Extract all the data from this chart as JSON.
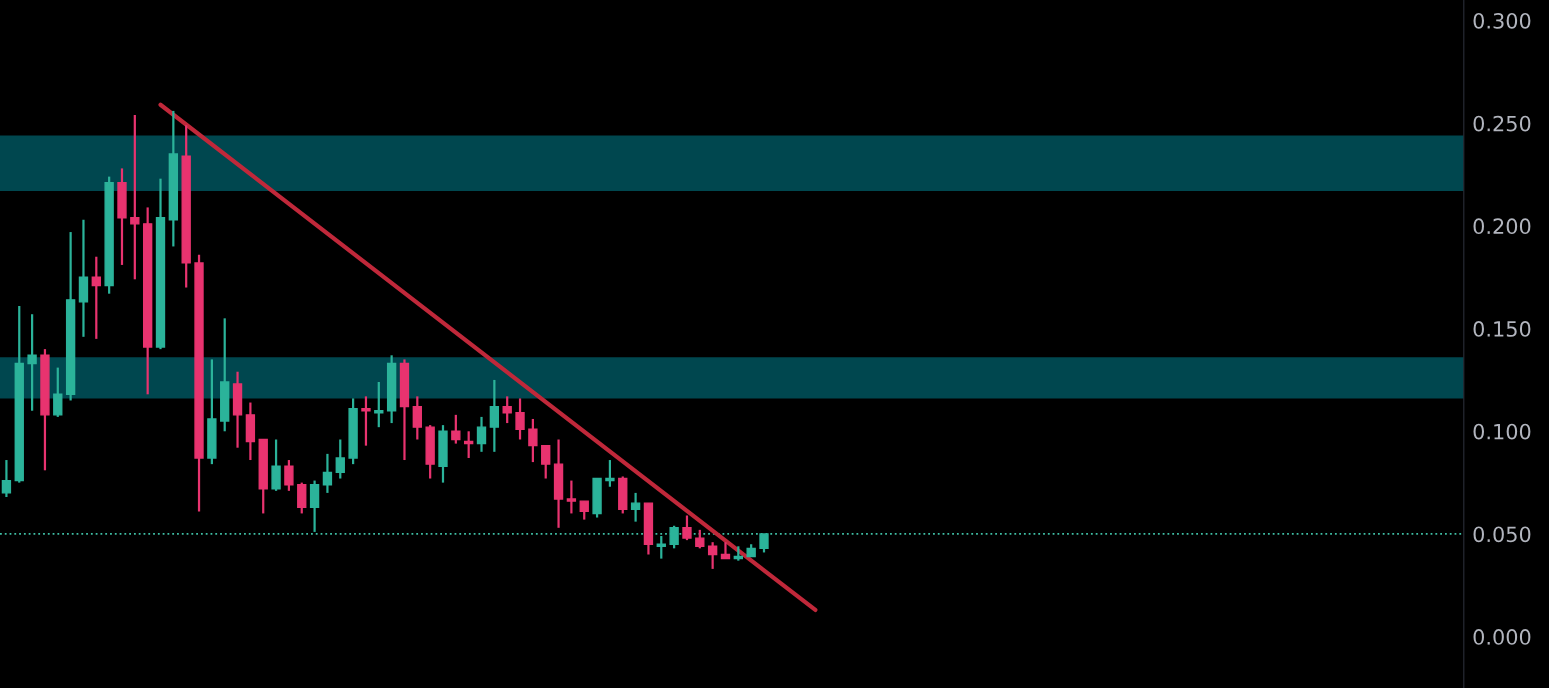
{
  "chart_data": {
    "type": "candlestick",
    "categories": [
      null,
      null,
      null,
      null,
      null,
      null,
      null,
      null,
      null,
      null,
      null,
      null,
      null,
      null,
      null,
      null,
      null,
      null,
      null,
      null,
      null,
      null,
      null,
      null,
      null,
      null,
      null,
      null,
      null,
      null,
      null,
      null,
      null,
      null,
      null,
      null,
      null,
      null,
      null,
      null,
      null,
      null,
      null,
      null,
      null,
      null,
      null,
      null,
      null,
      null,
      null,
      null,
      null,
      null,
      null,
      null,
      null,
      null,
      null,
      null,
      null,
      null,
      null,
      null,
      null,
      null,
      null,
      null,
      null,
      null,
      null,
      null,
      null,
      null,
      null,
      null,
      null,
      null,
      null,
      null,
      null,
      null,
      null,
      null,
      null,
      null,
      null,
      null,
      null,
      null,
      null,
      null,
      null,
      null,
      null,
      null,
      null,
      null,
      null,
      null,
      null,
      null,
      null,
      null,
      null,
      null,
      null,
      null,
      null,
      null,
      null,
      null,
      null,
      null
    ],
    "ohlc": [
      [
        0.07,
        0.086,
        0.068,
        0.076
      ],
      [
        0.076,
        0.161,
        0.075,
        0.133
      ],
      [
        0.133,
        0.157,
        0.11,
        0.137
      ],
      [
        0.137,
        0.14,
        0.081,
        0.108
      ],
      [
        0.108,
        0.131,
        0.107,
        0.118
      ],
      [
        0.118,
        0.197,
        0.115,
        0.164
      ],
      [
        0.163,
        0.203,
        0.146,
        0.175
      ],
      [
        0.175,
        0.185,
        0.145,
        0.171
      ],
      [
        0.171,
        0.224,
        0.167,
        0.221
      ],
      [
        0.221,
        0.228,
        0.181,
        0.204
      ],
      [
        0.204,
        0.254,
        0.174,
        0.201
      ],
      [
        0.201,
        0.209,
        0.118,
        0.141
      ],
      [
        0.141,
        0.223,
        0.14,
        0.204
      ],
      [
        0.203,
        0.256,
        0.19,
        0.235
      ],
      [
        0.234,
        0.249,
        0.17,
        0.182
      ],
      [
        0.182,
        0.186,
        0.061,
        0.087
      ],
      [
        0.087,
        0.135,
        0.084,
        0.106
      ],
      [
        0.105,
        0.155,
        0.1,
        0.124
      ],
      [
        0.123,
        0.129,
        0.092,
        0.108
      ],
      [
        0.108,
        0.114,
        0.086,
        0.095
      ],
      [
        0.096,
        0.096,
        0.06,
        0.072
      ],
      [
        0.072,
        0.096,
        0.071,
        0.083
      ],
      [
        0.083,
        0.086,
        0.071,
        0.074
      ],
      [
        0.074,
        0.075,
        0.06,
        0.063
      ],
      [
        0.063,
        0.076,
        0.051,
        0.074
      ],
      [
        0.074,
        0.089,
        0.07,
        0.08
      ],
      [
        0.08,
        0.096,
        0.077,
        0.087
      ],
      [
        0.087,
        0.116,
        0.084,
        0.111
      ],
      [
        0.111,
        0.117,
        0.093,
        0.11
      ],
      [
        0.109,
        0.124,
        0.102,
        0.11
      ],
      [
        0.11,
        0.137,
        0.104,
        0.133
      ],
      [
        0.133,
        0.135,
        0.086,
        0.112
      ],
      [
        0.112,
        0.117,
        0.096,
        0.102
      ],
      [
        0.102,
        0.103,
        0.077,
        0.084
      ],
      [
        0.083,
        0.103,
        0.075,
        0.1
      ],
      [
        0.1,
        0.108,
        0.094,
        0.096
      ],
      [
        0.095,
        0.1,
        0.087,
        0.094
      ],
      [
        0.094,
        0.107,
        0.09,
        0.102
      ],
      [
        0.102,
        0.125,
        0.09,
        0.112
      ],
      [
        0.112,
        0.117,
        0.104,
        0.109
      ],
      [
        0.109,
        0.116,
        0.096,
        0.101
      ],
      [
        0.101,
        0.106,
        0.085,
        0.093
      ],
      [
        0.093,
        0.093,
        0.077,
        0.084
      ],
      [
        0.084,
        0.096,
        0.053,
        0.067
      ],
      [
        0.067,
        0.076,
        0.06,
        0.066
      ],
      [
        0.066,
        0.066,
        0.057,
        0.061
      ],
      [
        0.06,
        0.077,
        0.058,
        0.077
      ],
      [
        0.076,
        0.086,
        0.073,
        0.077
      ],
      [
        0.077,
        0.078,
        0.06,
        0.062
      ],
      [
        0.062,
        0.07,
        0.056,
        0.065
      ],
      [
        0.065,
        0.065,
        0.04,
        0.045
      ],
      [
        0.044,
        0.049,
        0.038,
        0.045
      ],
      [
        0.045,
        0.054,
        0.043,
        0.053
      ],
      [
        0.053,
        0.059,
        0.047,
        0.048
      ],
      [
        0.048,
        0.052,
        0.043,
        0.044
      ],
      [
        0.044,
        0.046,
        0.033,
        0.04
      ],
      [
        0.04,
        0.046,
        0.038,
        0.038
      ],
      [
        0.038,
        0.044,
        0.037,
        0.039
      ],
      [
        0.039,
        0.045,
        0.039,
        0.043
      ],
      [
        0.043,
        0.05,
        0.041,
        0.05
      ],
      null,
      null,
      null,
      null,
      null,
      null,
      null,
      null,
      null,
      null,
      null,
      null,
      null,
      null,
      null,
      null,
      null,
      null,
      null,
      null,
      null,
      null,
      null,
      null,
      null,
      null,
      null,
      null,
      null,
      null,
      null,
      null,
      null,
      null,
      null,
      null,
      null,
      null,
      null,
      null,
      null,
      null,
      null,
      null,
      null,
      null,
      null,
      null,
      null,
      null,
      null,
      null,
      null,
      null
    ],
    "colors": [
      "#2bb39a",
      "#2bb39a",
      "#2bb39a",
      "#e8336f",
      "#2bb39a",
      "#2bb39a",
      "#2bb39a",
      "#e8336f",
      "#2bb39a",
      "#e8336f",
      "#e8336f",
      "#e8336f",
      "#2bb39a",
      "#2bb39a",
      "#e8336f",
      "#e8336f",
      "#2bb39a",
      "#2bb39a",
      "#e8336f",
      "#e8336f",
      "#e8336f",
      "#2bb39a",
      "#e8336f",
      "#e8336f",
      "#2bb39a",
      "#2bb39a",
      "#2bb39a",
      "#2bb39a",
      "#e8336f",
      "#2bb39a",
      "#2bb39a",
      "#e8336f",
      "#e8336f",
      "#e8336f",
      "#2bb39a",
      "#e8336f",
      "#e8336f",
      "#2bb39a",
      "#2bb39a",
      "#e8336f",
      "#e8336f",
      "#e8336f",
      "#e8336f",
      "#e8336f",
      "#e8336f",
      "#e8336f",
      "#2bb39a",
      "#2bb39a",
      "#e8336f",
      "#2bb39a",
      "#e8336f",
      "#2bb39a",
      "#2bb39a",
      "#e8336f",
      "#e8336f",
      "#e8336f",
      "#e8336f",
      "#2bb39a",
      "#2bb39a",
      "#2bb39a",
      null,
      null,
      null,
      null,
      null,
      null,
      null,
      null,
      null,
      null,
      null,
      null,
      null,
      null,
      null,
      null,
      null,
      null,
      null,
      null,
      null,
      null,
      null,
      null,
      null,
      null,
      null,
      null,
      null,
      null,
      null,
      null,
      null,
      null,
      null,
      null,
      null,
      null,
      null,
      null,
      null,
      null,
      null,
      null,
      null,
      null,
      null,
      null,
      null,
      null,
      null,
      null,
      null,
      null
    ],
    "series": [
      {
        "type": "line",
        "values": [
          null,
          null,
          null,
          null,
          null,
          null,
          null,
          null,
          null,
          null,
          null,
          null,
          0.259,
          null,
          null,
          null,
          null,
          null,
          null,
          null,
          null,
          null,
          null,
          null,
          null,
          null,
          null,
          null,
          null,
          null,
          null,
          null,
          null,
          null,
          null,
          null,
          null,
          null,
          null,
          null,
          null,
          null,
          null,
          null,
          null,
          null,
          null,
          null,
          null,
          null,
          null,
          null,
          null,
          null,
          null,
          null,
          null,
          null,
          null,
          null,
          null,
          null,
          null,
          0.013,
          null,
          null,
          null,
          null,
          null,
          null,
          null,
          null,
          null,
          null,
          null,
          null,
          null,
          null,
          null,
          null,
          null,
          null,
          null,
          null,
          null,
          null,
          null,
          null,
          null,
          null,
          null,
          null,
          null,
          null,
          null,
          null,
          null,
          null,
          null,
          null,
          null,
          null,
          null,
          null,
          null,
          null,
          null,
          null,
          null,
          null,
          null,
          null,
          null,
          null
        ],
        "color": "#c0283a"
      }
    ],
    "bands": [
      {
        "axis": "y",
        "from": 0.217,
        "to": 0.244,
        "color": "#00474f"
      },
      {
        "axis": "y",
        "from": 0.116,
        "to": 0.136,
        "color": "#00474f"
      }
    ],
    "ref_lines": [
      {
        "axis": "y",
        "value": 0.05,
        "color": "#3fbfa5",
        "line_style": "dotted"
      }
    ],
    "ylim": [
      -0.025,
      0.31
    ],
    "yticks": [
      {
        "value": 0,
        "label": "0.000"
      },
      {
        "value": 0.05,
        "label": "0.050"
      },
      {
        "value": 0.1,
        "label": "0.100"
      },
      {
        "value": 0.15,
        "label": "0.150"
      },
      {
        "value": 0.2,
        "label": "0.200"
      },
      {
        "value": 0.25,
        "label": "0.250"
      },
      {
        "value": 0.3,
        "label": "0.300"
      }
    ],
    "tick_labels": "y"
  }
}
